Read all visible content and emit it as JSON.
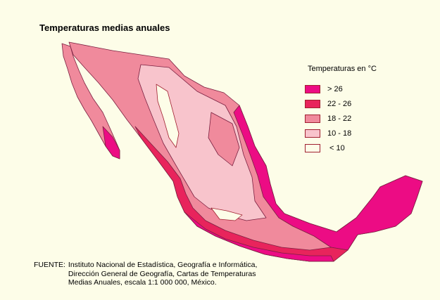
{
  "title": "Temperaturas medias anuales",
  "legend": {
    "title": "Temperaturas en",
    "unit": "°C",
    "items": [
      {
        "label": "> 26",
        "color": "#ec0c84"
      },
      {
        "label": "22 - 26",
        "color": "#e8245c"
      },
      {
        "label": "18 - 22",
        "color": "#f08a9c"
      },
      {
        "label": "10 - 18",
        "color": "#f8c4cc"
      },
      {
        "label": "< 10",
        "color": "#fdfde8"
      }
    ]
  },
  "source": {
    "label": "FUENTE:",
    "lines": [
      "Instituto Nacional de Estadística, Geografía e Informática,",
      "Dirección General de Geografía, Cartas de Temperaturas",
      "Medias Anuales, escala 1:1 000 000, México."
    ]
  }
}
